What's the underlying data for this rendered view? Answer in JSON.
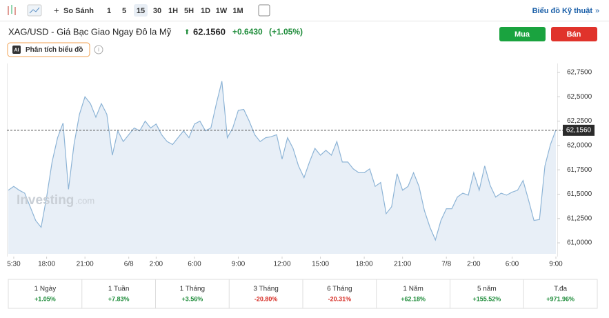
{
  "toolbar": {
    "compare": "So Sánh",
    "intervals": [
      "1",
      "5",
      "15",
      "30",
      "1H",
      "5H",
      "1D",
      "1W",
      "1M"
    ],
    "technical": "Biểu đồ Kỹ thuật"
  },
  "header": {
    "title": "XAG/USD - Giá Bạc Giao Ngay Đô la Mỹ",
    "price": "62.1560",
    "change": "+0.6430",
    "change_pct": "(+1.05%)",
    "buy": "Mua",
    "sell": "Bán",
    "analysis": "Phân tích biểu đồ"
  },
  "watermark": {
    "brand": "Investing",
    "suffix": ".com"
  },
  "chart_data": {
    "type": "area",
    "color": "#8db4d6",
    "fill": "#e8eff7",
    "values": [
      61.54,
      61.58,
      61.54,
      61.51,
      61.37,
      61.23,
      61.16,
      61.47,
      61.83,
      62.08,
      62.23,
      61.55,
      62.01,
      62.32,
      62.5,
      62.43,
      62.29,
      62.43,
      62.32,
      61.9,
      62.15,
      62.04,
      62.11,
      62.18,
      62.15,
      62.25,
      62.18,
      62.22,
      62.11,
      62.04,
      62.01,
      62.08,
      62.15,
      62.08,
      62.22,
      62.25,
      62.15,
      62.18,
      62.43,
      62.66,
      62.08,
      62.18,
      62.36,
      62.37,
      62.25,
      62.11,
      62.04,
      62.08,
      62.09,
      62.11,
      61.86,
      62.08,
      61.97,
      61.79,
      61.67,
      61.83,
      61.97,
      61.9,
      61.95,
      61.9,
      62.04,
      61.83,
      61.83,
      61.76,
      61.72,
      61.72,
      61.76,
      61.58,
      61.62,
      61.3,
      61.37,
      61.71,
      61.54,
      61.58,
      61.72,
      61.58,
      61.33,
      61.16,
      61.03,
      61.23,
      61.35,
      61.35,
      61.47,
      61.51,
      61.49,
      61.72,
      61.54,
      61.79,
      61.59,
      61.47,
      61.51,
      61.49,
      61.52,
      61.54,
      61.64,
      61.44,
      61.23,
      61.24,
      61.79,
      62.01,
      62.16
    ],
    "xlim": [
      0,
      100
    ],
    "xticks": [
      {
        "value": 1,
        "label": "5:30"
      },
      {
        "value": 7,
        "label": "18:00"
      },
      {
        "value": 14,
        "label": "21:00"
      },
      {
        "value": 22,
        "label": "6/8"
      },
      {
        "value": 27,
        "label": "2:00"
      },
      {
        "value": 34,
        "label": "6:00"
      },
      {
        "value": 42,
        "label": "9:00"
      },
      {
        "value": 50,
        "label": "12:00"
      },
      {
        "value": 57,
        "label": "15:00"
      },
      {
        "value": 65,
        "label": "18:00"
      },
      {
        "value": 72,
        "label": "21:00"
      },
      {
        "value": 80,
        "label": "7/8"
      },
      {
        "value": 85,
        "label": "2:00"
      },
      {
        "value": 92,
        "label": "6:00"
      },
      {
        "value": 100,
        "label": "9:00"
      }
    ],
    "ylim": [
      60.887,
      62.842
    ],
    "yticks": [
      {
        "value": 61,
        "label": "61,0000"
      },
      {
        "value": 61.25,
        "label": "61,2500"
      },
      {
        "value": 61.5,
        "label": "61,5000"
      },
      {
        "value": 61.75,
        "label": "61,7500"
      },
      {
        "value": 62,
        "label": "62,0000"
      },
      {
        "value": 62.25,
        "label": "62,2500"
      },
      {
        "value": 62.5,
        "label": "62,5000"
      },
      {
        "value": 62.75,
        "label": "62,7500"
      }
    ],
    "last_value": {
      "value": 62.156,
      "label": "62,1560"
    }
  },
  "performance": [
    {
      "period": "1 Ngày",
      "change": "+1.05%"
    },
    {
      "period": "1 Tuần",
      "change": "+7.83%"
    },
    {
      "period": "1 Tháng",
      "change": "+3.56%"
    },
    {
      "period": "3 Tháng",
      "change": "-20.80%"
    },
    {
      "period": "6 Tháng",
      "change": "-20.31%"
    },
    {
      "period": "1 Năm",
      "change": "+62.18%"
    },
    {
      "period": "5 năm",
      "change": "+155.52%"
    },
    {
      "period": "T.đa",
      "change": "+971.96%"
    }
  ]
}
